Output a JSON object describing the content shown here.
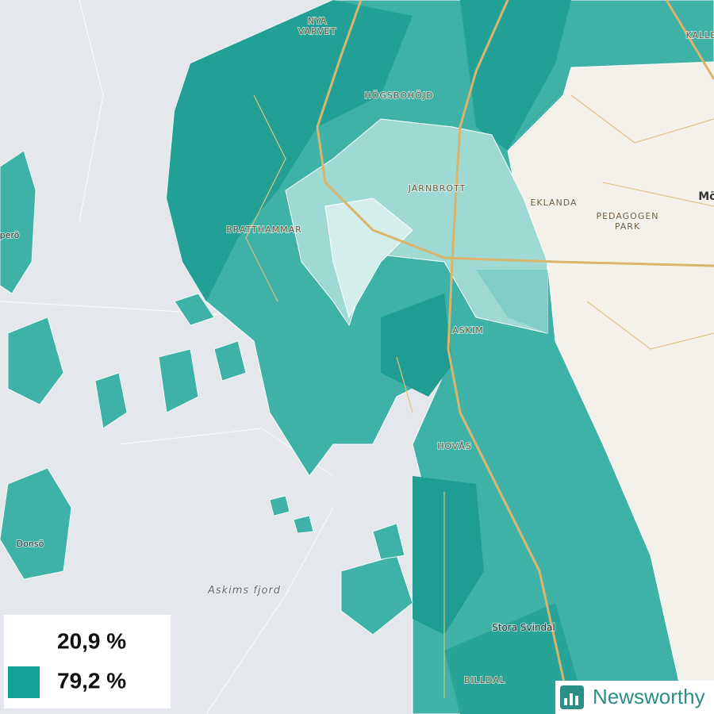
{
  "map": {
    "places": [
      {
        "lines": [
          "NYA",
          "VARVET"
        ]
      },
      {
        "lines": [
          "HÖGSBOHÖJD"
        ]
      },
      {
        "lines": [
          "JÄRNBROTT"
        ]
      },
      {
        "lines": [
          "EKLANDA"
        ]
      },
      {
        "lines": [
          "PEDAGOGEN",
          "PARK"
        ]
      },
      {
        "lines": [
          "BRATTHAMMAR"
        ]
      },
      {
        "lines": [
          "ASKIM"
        ]
      },
      {
        "lines": [
          "HOVÅS"
        ]
      },
      {
        "lines": [
          "Stora Svindal"
        ]
      },
      {
        "lines": [
          "BILLDAL"
        ]
      },
      {
        "lines": [
          "Donsö"
        ]
      },
      {
        "lines": [
          "Askims fjord"
        ]
      },
      {
        "lines": [
          "Mö"
        ]
      },
      {
        "lines": [
          "KALLE"
        ]
      },
      {
        "lines": [
          "perö"
        ]
      }
    ],
    "legend": {
      "items": [
        {
          "label": "20,9 %",
          "color": "#ffffff"
        },
        {
          "label": "79,2 %",
          "color": "#14a197"
        }
      ]
    },
    "brand": "Newsworthy"
  }
}
